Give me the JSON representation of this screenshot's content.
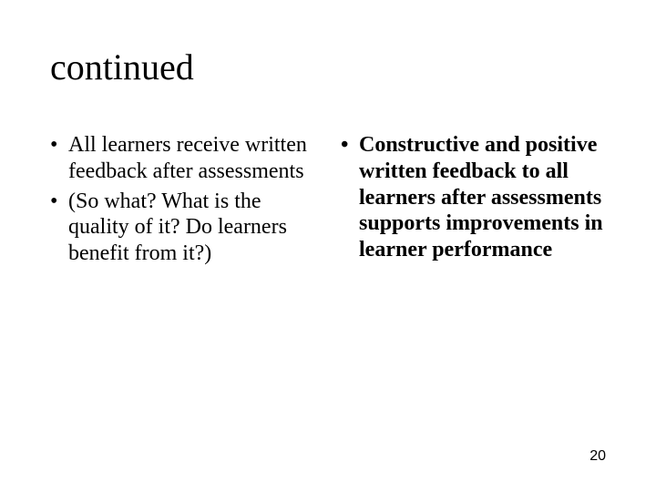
{
  "title": "continued",
  "columns": {
    "left": {
      "bullets": [
        {
          "text": "All learners receive written feedback after assessments",
          "bold": false
        },
        {
          "text": "(So what? What is the quality of it? Do learners benefit from it?)",
          "bold": false
        }
      ]
    },
    "right": {
      "bullets": [
        {
          "text": "Constructive and positive written feedback to all learners after assessments supports improvements in learner performance",
          "bold": true
        }
      ]
    }
  },
  "page_number": "20",
  "style": {
    "background_color": "#ffffff",
    "text_color": "#000000",
    "title_fontsize": 40,
    "body_fontsize": 24,
    "page_number_fontsize": 16,
    "font_family": "Times New Roman",
    "bullet_char": "•"
  }
}
